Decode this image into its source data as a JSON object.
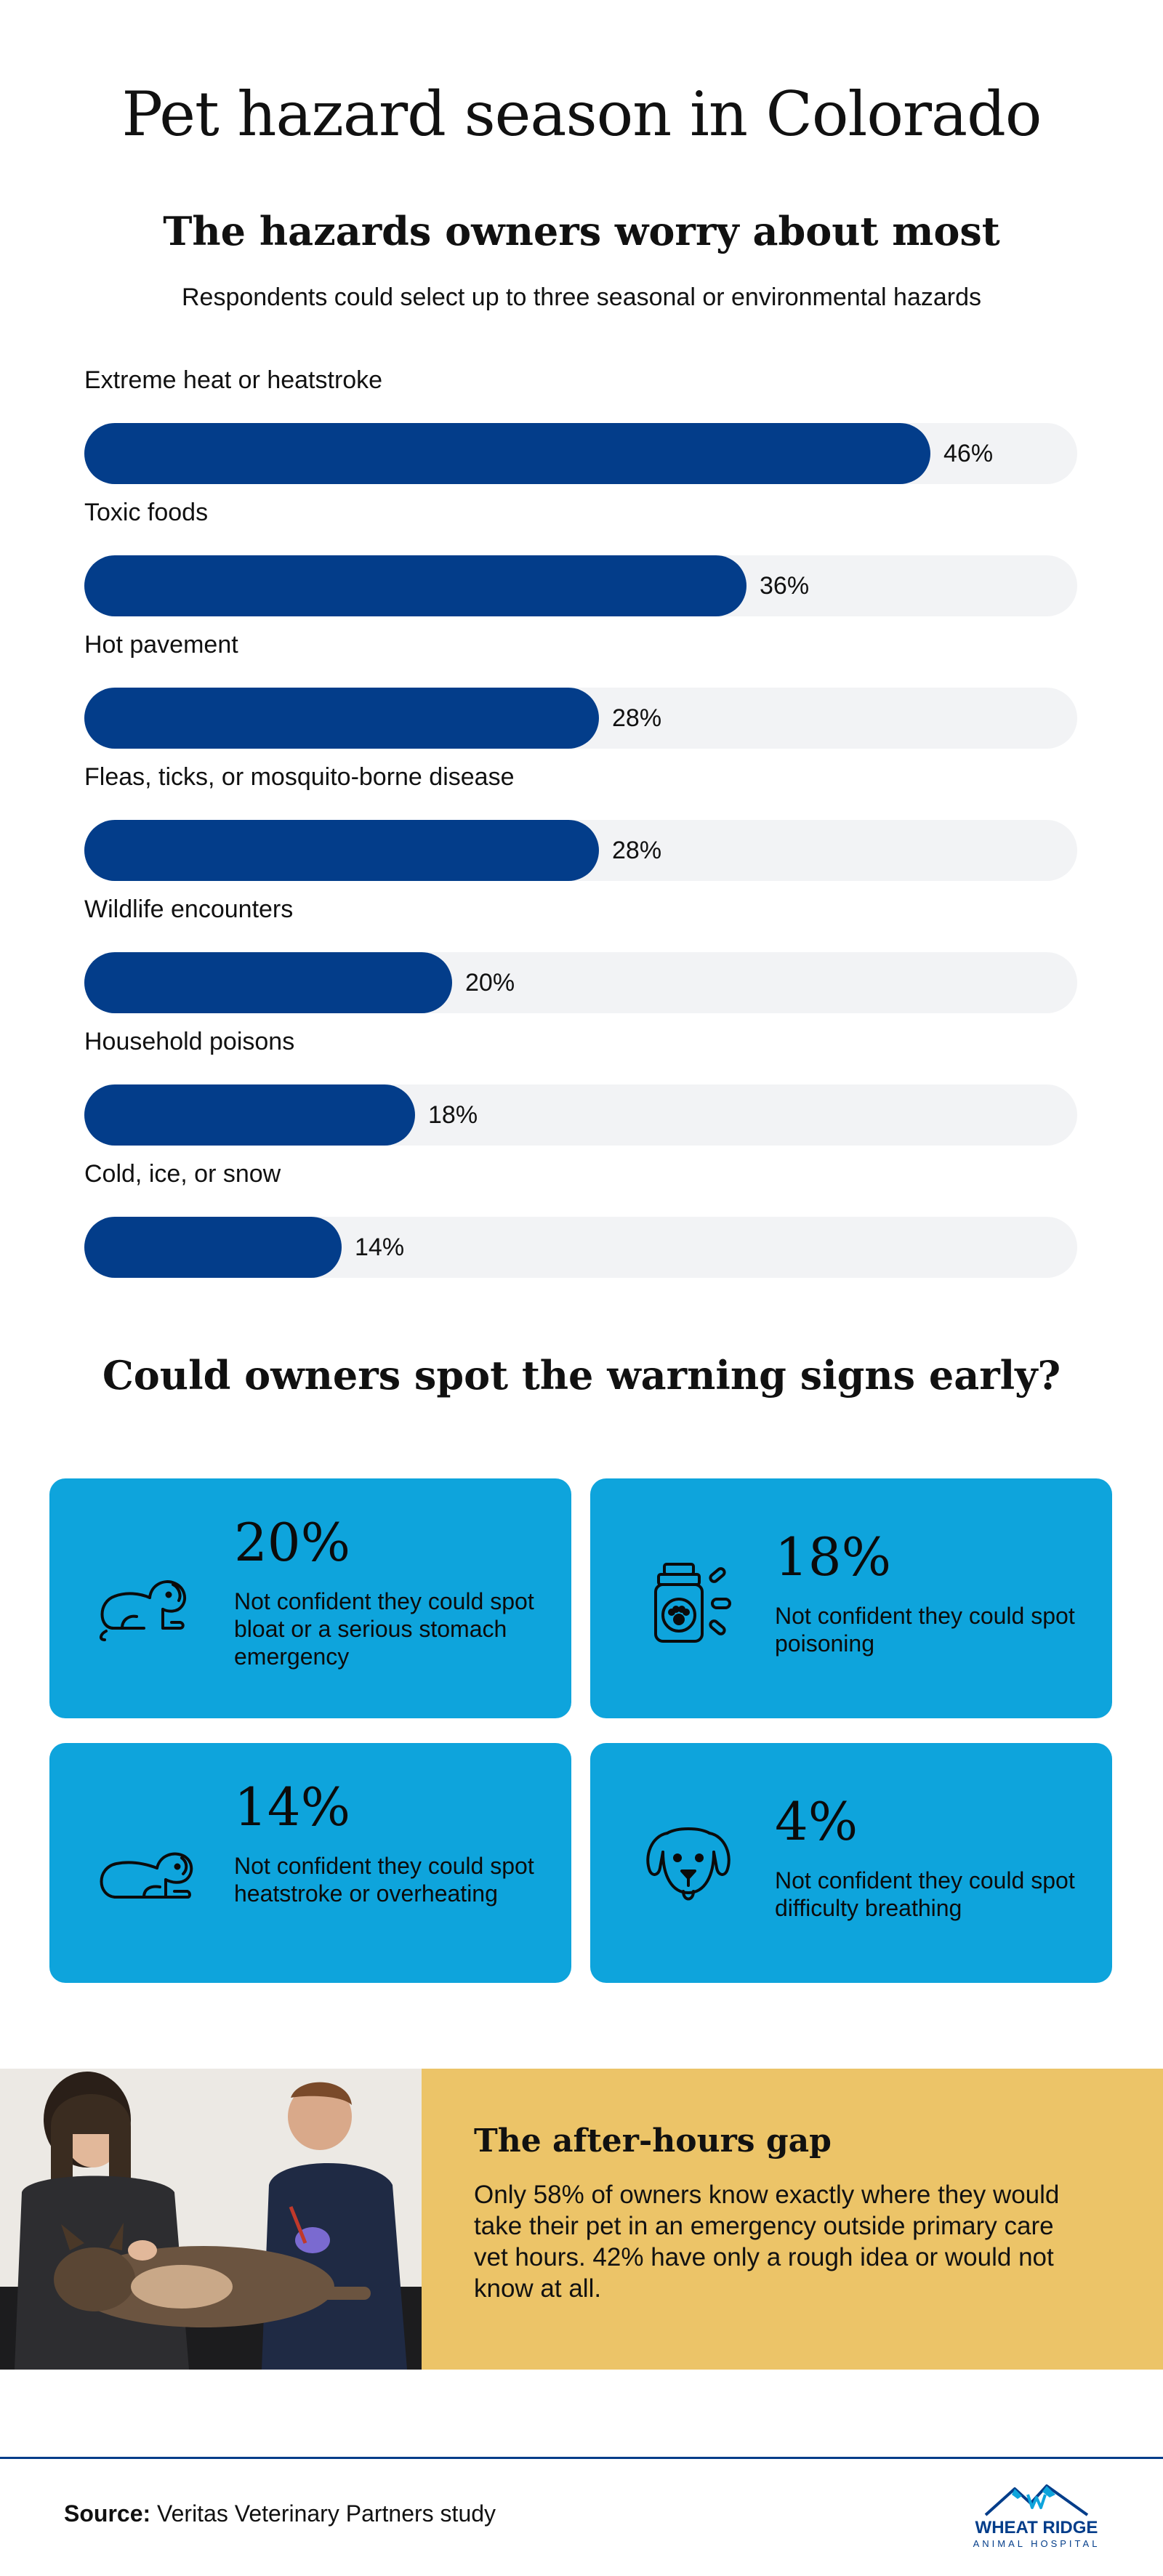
{
  "header": {
    "title": "Pet hazard season in Colorado"
  },
  "chart_data": {
    "type": "bar",
    "orientation": "horizontal",
    "title": "The hazards owners worry about most",
    "subtitle": "Respondents could select up to three seasonal or environmental hazards",
    "categories": [
      "Extreme heat or heatstroke",
      "Toxic foods",
      "Hot pavement",
      "Fleas, ticks, or mosquito-borne disease",
      "Wildlife encounters",
      "Household poisons",
      "Cold, ice, or snow"
    ],
    "values": [
      46,
      36,
      28,
      28,
      20,
      18,
      14
    ],
    "value_labels": [
      "46%",
      "36%",
      "28%",
      "28%",
      "20%",
      "18%",
      "14%"
    ],
    "xlim": [
      0,
      54
    ],
    "grid": false,
    "colors": {
      "bar": "#033d8a",
      "track": "#f2f3f5"
    }
  },
  "signs": {
    "title": "Could owners spot the warning signs early?",
    "card_color": "#0ea4dc",
    "cards": [
      {
        "value": "20%",
        "desc": "Not confident they could spot bloat or a serious stomach emergency",
        "icon": "sitting-dog-icon"
      },
      {
        "value": "18%",
        "desc": "Not confident they could spot poisoning",
        "icon": "medicine-bottle-icon"
      },
      {
        "value": "14%",
        "desc": "Not confident they could spot heatstroke or overheating",
        "icon": "lying-dog-icon"
      },
      {
        "value": "4%",
        "desc": "Not confident they could spot difficulty breathing",
        "icon": "dog-face-icon"
      }
    ]
  },
  "gap": {
    "title": "The after-hours gap",
    "text": "Only 58% of owners know exactly where they would take their pet in an emergency outside primary care vet hours. 42% have only a rough idea or would not know at all.",
    "panel_color": "#ecc468"
  },
  "footer": {
    "source_label": "Source:",
    "source_text": "Veritas Veterinary Partners study",
    "logo_name": "WHEAT RIDGE",
    "logo_sub": "ANIMAL HOSPITAL",
    "accent": "#033d8a"
  }
}
